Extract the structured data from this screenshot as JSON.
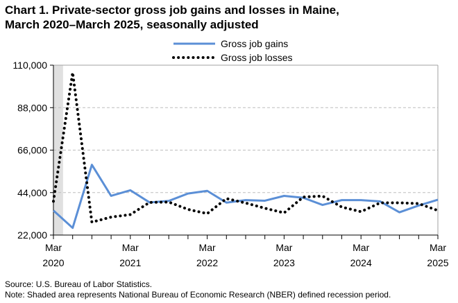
{
  "chart_data": {
    "type": "line",
    "title": "Chart 1. Private-sector gross job gains and losses in Maine, March 2020–March 2025, seasonally adjusted",
    "x": [
      "Mar 2020",
      "Jun 2020",
      "Sep 2020",
      "Dec 2020",
      "Mar 2021",
      "Jun 2021",
      "Sep 2021",
      "Dec 2021",
      "Mar 2022",
      "Jun 2022",
      "Sep 2022",
      "Dec 2022",
      "Mar 2023",
      "Jun 2023",
      "Sep 2023",
      "Dec 2023",
      "Mar 2024",
      "Jun 2024",
      "Sep 2024",
      "Dec 2024",
      "Mar 2025"
    ],
    "x_tick_labels": [
      {
        "month": "Mar",
        "year": "2020"
      },
      {
        "month": "Mar",
        "year": "2021"
      },
      {
        "month": "Mar",
        "year": "2022"
      },
      {
        "month": "Mar",
        "year": "2023"
      },
      {
        "month": "Mar",
        "year": "2024"
      },
      {
        "month": "Mar",
        "year": "2025"
      }
    ],
    "y_tick_labels": [
      "22,000",
      "44,000",
      "66,000",
      "88,000",
      "110,000"
    ],
    "ylim": [
      22000,
      110000
    ],
    "grid": "horizontal dashed",
    "legend": "top-center",
    "series": [
      {
        "name": "Gross job gains",
        "color": "#5b8fd6",
        "style": "solid",
        "values": [
          34700,
          25700,
          58400,
          42300,
          45200,
          38900,
          39700,
          43500,
          44900,
          38800,
          40100,
          39800,
          42300,
          41300,
          37600,
          40100,
          40100,
          39400,
          33800,
          37300,
          40300
        ]
      },
      {
        "name": "Gross job losses",
        "color": "#000000",
        "style": "dotted",
        "values": [
          39500,
          106200,
          28700,
          31300,
          32600,
          38900,
          39100,
          35300,
          33100,
          40900,
          38600,
          35900,
          33500,
          41700,
          42200,
          36500,
          34100,
          38700,
          38700,
          38300,
          34700
        ]
      }
    ],
    "recession_shading": {
      "from": "Mar 2020",
      "to": "Apr 2020",
      "color": "#e0e0e0"
    }
  },
  "footer": {
    "source": "Source: U.S. Bureau of Labor Statistics.",
    "note": "Note: Shaded area represents National Bureau of Economic Research (NBER) defined recession period."
  }
}
